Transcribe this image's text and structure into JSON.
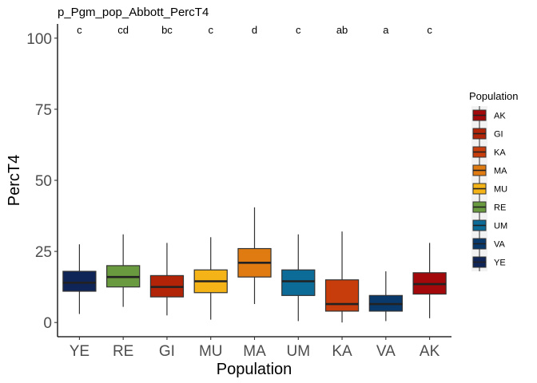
{
  "chart_data": {
    "type": "box",
    "title": "p_Pgm_pop_Abbott_PercT4",
    "xlabel": "Population",
    "ylabel": "PercT4",
    "ylim": [
      -5,
      105
    ],
    "yticks": [
      0,
      25,
      50,
      75,
      100
    ],
    "grid": false,
    "legend": {
      "title": "Population",
      "placement": "right",
      "entries": [
        "AK",
        "GI",
        "KA",
        "MA",
        "MU",
        "RE",
        "UM",
        "VA",
        "YE"
      ]
    },
    "categories": [
      "YE",
      "RE",
      "GI",
      "MU",
      "MA",
      "UM",
      "KA",
      "VA",
      "AK"
    ],
    "series": [
      {
        "category": "YE",
        "color": "#0F2457",
        "whisker_low": 3,
        "q1": 11,
        "median": 14,
        "q3": 18,
        "whisker_high": 27.5,
        "letter": "c"
      },
      {
        "category": "RE",
        "color": "#6A9A3F",
        "whisker_low": 5.5,
        "q1": 12.5,
        "median": 16,
        "q3": 20,
        "whisker_high": 31,
        "letter": "cd"
      },
      {
        "category": "GI",
        "color": "#B12408",
        "whisker_low": 2.5,
        "q1": 9,
        "median": 12.5,
        "q3": 16.5,
        "whisker_high": 28,
        "letter": "bc"
      },
      {
        "category": "MU",
        "color": "#F4B316",
        "whisker_low": 1,
        "q1": 10.5,
        "median": 14.5,
        "q3": 18.5,
        "whisker_high": 30,
        "letter": "c"
      },
      {
        "category": "MA",
        "color": "#E07B12",
        "whisker_low": 6.5,
        "q1": 16,
        "median": 21,
        "q3": 26,
        "whisker_high": 40.5,
        "letter": "d"
      },
      {
        "category": "UM",
        "color": "#0C6B97",
        "whisker_low": 0.5,
        "q1": 9.5,
        "median": 14.5,
        "q3": 18.5,
        "whisker_high": 31,
        "letter": "c"
      },
      {
        "category": "KA",
        "color": "#C73D0B",
        "whisker_low": 0,
        "q1": 4,
        "median": 6.5,
        "q3": 15,
        "whisker_high": 32,
        "letter": "ab"
      },
      {
        "category": "VA",
        "color": "#0A3A6C",
        "whisker_low": 0.5,
        "q1": 4,
        "median": 6.5,
        "q3": 9.5,
        "whisker_high": 18,
        "letter": "a"
      },
      {
        "category": "AK",
        "color": "#A3090A",
        "whisker_low": 1.5,
        "q1": 10,
        "median": 13.5,
        "q3": 17.5,
        "whisker_high": 28,
        "letter": "c"
      }
    ]
  }
}
